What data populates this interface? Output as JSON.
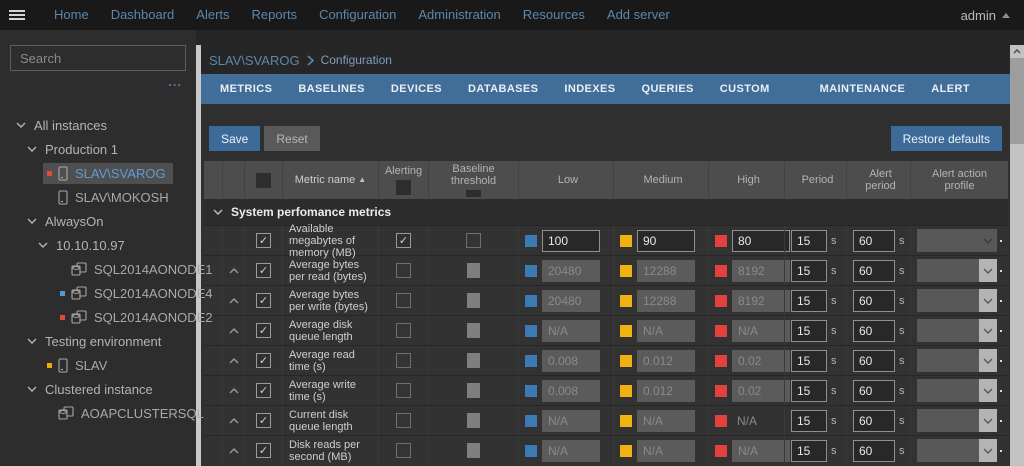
{
  "topnav": {
    "items": [
      "Home",
      "Dashboard",
      "Alerts",
      "Reports",
      "Configuration",
      "Administration",
      "Resources",
      "Add server"
    ],
    "user": "admin"
  },
  "sidebar": {
    "search_placeholder": "Search",
    "ellipsis": "...",
    "tree": [
      {
        "label": "All instances",
        "level": 0,
        "type": "group"
      },
      {
        "label": "Production 1",
        "level": 1,
        "type": "group"
      },
      {
        "label": "SLAV\\SVAROG",
        "level": 2,
        "type": "server",
        "status": "red",
        "selected": true
      },
      {
        "label": "SLAV\\MOKOSH",
        "level": 2,
        "type": "server"
      },
      {
        "label": "AlwaysOn",
        "level": 1,
        "type": "group"
      },
      {
        "label": "10.10.10.97",
        "level": 2,
        "type": "group"
      },
      {
        "label": "SQL2014AONODE1",
        "level": 3,
        "type": "cluster"
      },
      {
        "label": "SQL2014AONODE4",
        "level": 3,
        "type": "cluster",
        "status": "blue"
      },
      {
        "label": "SQL2014AONODE2",
        "level": 3,
        "type": "cluster",
        "status": "red"
      },
      {
        "label": "Testing environment",
        "level": 1,
        "type": "group"
      },
      {
        "label": "SLAV",
        "level": 2,
        "type": "server",
        "status": "yellow"
      },
      {
        "label": "Clustered instance",
        "level": 1,
        "type": "group"
      },
      {
        "label": "AOAPCLUSTERSQL",
        "level": 2,
        "type": "cluster"
      }
    ]
  },
  "breadcrumb": {
    "root": "SLAV\\SVAROG",
    "current": "Configuration"
  },
  "tabs": {
    "active": 0,
    "items": [
      "METRICS",
      "BASELINES",
      "DEVICES",
      "DATABASES",
      "INDEXES",
      "QUERIES",
      "CUSTOM METRICS",
      "MAINTENANCE",
      "ALERT ACTIONS"
    ]
  },
  "toolbar": {
    "save": "Save",
    "reset": "Reset",
    "restore": "Restore defaults"
  },
  "colors": {
    "low": "#3d7ab5",
    "medium": "#f1b112",
    "high": "#e2423d",
    "status_red": "#e0493e",
    "status_blue": "#4f9cd6",
    "status_yellow": "#efa912",
    "accent": "#416e99"
  },
  "table": {
    "columns": [
      {
        "key": "garr",
        "label": ""
      },
      {
        "key": "rarr",
        "label": ""
      },
      {
        "key": "chk",
        "label": "",
        "checkbox": true
      },
      {
        "key": "name",
        "label": "Metric name",
        "sort": "asc"
      },
      {
        "key": "alert",
        "label": "Alerting",
        "checkbox": true
      },
      {
        "key": "base",
        "label": "Baseline threshold",
        "checkbox": true
      },
      {
        "key": "low",
        "label": "Low"
      },
      {
        "key": "med",
        "label": "Medium"
      },
      {
        "key": "high",
        "label": "High"
      },
      {
        "key": "per",
        "label": "Period"
      },
      {
        "key": "aper",
        "label": "Alert period"
      },
      {
        "key": "prof",
        "label": "Alert action profile"
      }
    ],
    "group": {
      "label": "System perfomance metrics"
    },
    "unit": "s",
    "rows": [
      {
        "name": "Available megabytes of memory (MB)",
        "arrow": false,
        "checked": true,
        "alerting": "checked",
        "baseline": "unchecked",
        "low": {
          "value": "100",
          "state": "enabled"
        },
        "medium": {
          "value": "90",
          "state": "enabled"
        },
        "high": {
          "value": "80",
          "state": "enabled"
        },
        "period": "15",
        "alert_period": "60",
        "profile_style": "plain"
      },
      {
        "name": "Average bytes per read (bytes)",
        "arrow": true,
        "checked": true,
        "alerting": "unchecked",
        "baseline": "filled",
        "low": {
          "value": "20480",
          "state": "disabled"
        },
        "medium": {
          "value": "12288",
          "state": "disabled"
        },
        "high": {
          "value": "8192",
          "state": "disabled"
        },
        "period": "15",
        "alert_period": "60",
        "profile_style": "button"
      },
      {
        "name": "Average bytes per write (bytes)",
        "arrow": true,
        "checked": true,
        "alerting": "unchecked",
        "baseline": "filled",
        "low": {
          "value": "20480",
          "state": "disabled"
        },
        "medium": {
          "value": "12288",
          "state": "disabled"
        },
        "high": {
          "value": "8192",
          "state": "disabled"
        },
        "period": "15",
        "alert_period": "60",
        "profile_style": "button"
      },
      {
        "name": "Average disk queue length",
        "arrow": true,
        "checked": true,
        "alerting": "unchecked",
        "baseline": "filled",
        "low": {
          "value": "N/A",
          "state": "disabled"
        },
        "medium": {
          "value": "N/A",
          "state": "disabled"
        },
        "high": {
          "value": "N/A",
          "state": "disabled"
        },
        "period": "15",
        "alert_period": "60",
        "profile_style": "button"
      },
      {
        "name": "Average read time (s)",
        "arrow": true,
        "checked": true,
        "alerting": "unchecked",
        "baseline": "filled",
        "low": {
          "value": "0.008",
          "state": "disabled"
        },
        "medium": {
          "value": "0.012",
          "state": "disabled"
        },
        "high": {
          "value": "0.02",
          "state": "disabled"
        },
        "period": "15",
        "alert_period": "60",
        "profile_style": "button"
      },
      {
        "name": "Average write time (s)",
        "arrow": true,
        "checked": true,
        "alerting": "unchecked",
        "baseline": "filled",
        "low": {
          "value": "0.008",
          "state": "disabled"
        },
        "medium": {
          "value": "0.012",
          "state": "disabled"
        },
        "high": {
          "value": "0.02",
          "state": "disabled"
        },
        "period": "15",
        "alert_period": "60",
        "profile_style": "button"
      },
      {
        "name": "Current disk queue length",
        "arrow": true,
        "checked": true,
        "alerting": "unchecked",
        "baseline": "filled",
        "low": {
          "value": "N/A",
          "state": "disabled"
        },
        "medium": {
          "value": "N/A",
          "state": "disabled"
        },
        "high": {
          "value": "N/A",
          "state": "plain"
        },
        "period": "15",
        "alert_period": "60",
        "profile_style": "button"
      },
      {
        "name": "Disk reads per second (MB)",
        "arrow": true,
        "checked": true,
        "alerting": "unchecked",
        "baseline": "filled",
        "low": {
          "value": "N/A",
          "state": "disabled"
        },
        "medium": {
          "value": "N/A",
          "state": "disabled"
        },
        "high": {
          "value": "N/A",
          "state": "disabled"
        },
        "period": "15",
        "alert_period": "60",
        "profile_style": "button"
      }
    ]
  }
}
